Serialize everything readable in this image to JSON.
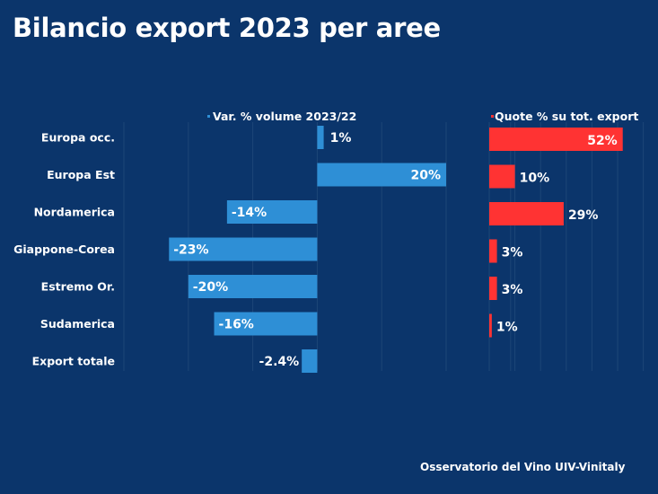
{
  "header": {
    "title": "Bilancio export 2023 per aree"
  },
  "footer": {
    "source": "Osservatorio del Vino UIV-Vinitaly"
  },
  "colors": {
    "background": "#0b356b",
    "volume": "#2e8fd6",
    "share": "#ff3333",
    "grid": "#1d4677"
  },
  "chart_data": [
    {
      "type": "bar",
      "orientation": "horizontal",
      "title": "Var. % volume 2023/22",
      "legend": "top",
      "categories": [
        "Europa occ.",
        "Europa Est",
        "Nordamerica",
        "Giappone-Corea",
        "Estremo Or.",
        "Sudamerica",
        "Export totale"
      ],
      "values": [
        1,
        20,
        -14,
        -23,
        -20,
        -16,
        -2.4
      ],
      "labels": [
        "1%",
        "20%",
        "-14%",
        "-23%",
        "-20%",
        "-16%",
        "-2.4%"
      ],
      "xlim": [
        -30,
        20
      ],
      "grid": true,
      "grid_step": 10,
      "color": "#2e8fd6"
    },
    {
      "type": "bar",
      "orientation": "horizontal",
      "title": "Quote % su tot. export",
      "legend": "top",
      "categories": [
        "Europa occ.",
        "Europa Est",
        "Nordamerica",
        "Giappone-Corea",
        "Estremo Or.",
        "Sudamerica"
      ],
      "values": [
        52,
        10,
        29,
        3,
        3,
        1
      ],
      "labels": [
        "52%",
        "10%",
        "29%",
        "3%",
        "3%",
        "1%"
      ],
      "xlim": [
        0,
        60
      ],
      "grid": true,
      "grid_step": 10,
      "color": "#ff3333"
    }
  ]
}
